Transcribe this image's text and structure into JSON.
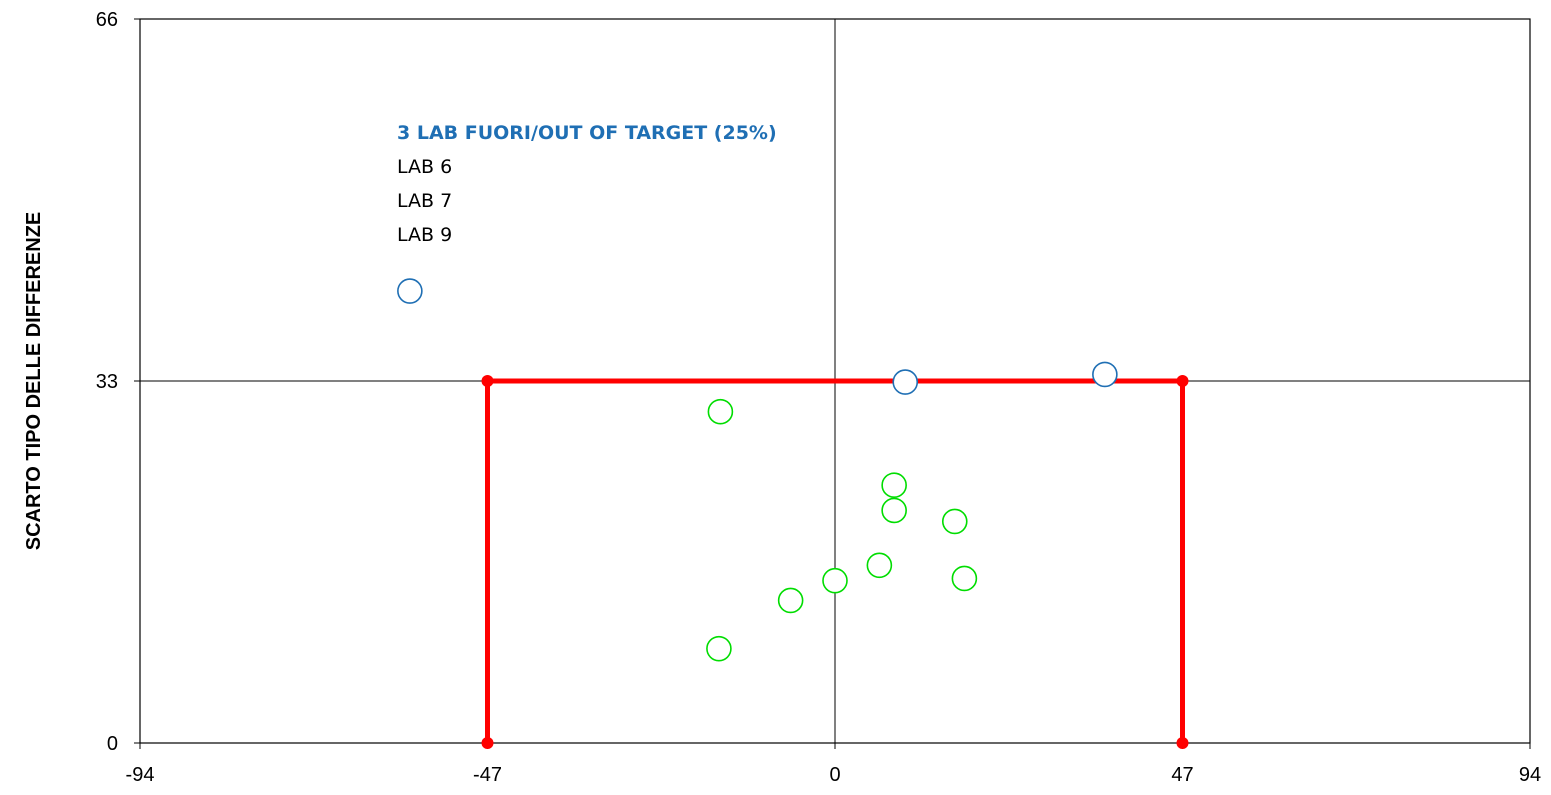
{
  "chart_data": {
    "type": "scatter",
    "title": "",
    "xlabel": "",
    "ylabel": "SCARTO TIPO DELLE DIFFERENZE",
    "xlim": [
      -94,
      94
    ],
    "ylim": [
      0,
      66
    ],
    "x_ticks": [
      "-94",
      "-47",
      "0",
      "47",
      "94"
    ],
    "y_ticks": [
      "0",
      "33",
      "66"
    ],
    "grid": false,
    "reference_lines": {
      "x": 0,
      "y": 33
    },
    "target_box": {
      "color": "#ff0000",
      "corners": [
        [
          -47,
          0
        ],
        [
          -47,
          33
        ],
        [
          47,
          33
        ],
        [
          47,
          0
        ]
      ]
    },
    "series": [
      {
        "status": "in",
        "color": "#00dd00",
        "points": [
          [
            -15.5,
            30.2
          ],
          [
            8,
            23.5
          ],
          [
            8,
            21.2
          ],
          [
            16.2,
            20.2
          ],
          [
            6,
            16.2
          ],
          [
            0,
            14.8
          ],
          [
            17.5,
            15.0
          ],
          [
            -6,
            13.0
          ],
          [
            -15.7,
            8.6
          ]
        ]
      },
      {
        "status": "out",
        "color": "#1f6fb4",
        "points": [
          [
            -57.5,
            41.2
          ],
          [
            9.5,
            32.9
          ],
          [
            36.5,
            33.6
          ]
        ]
      }
    ],
    "annotation": {
      "title": "3 LAB FUORI/OUT OF TARGET (25%)",
      "title_color": "#1f6fb4",
      "lines": [
        "LAB 6",
        "LAB 7",
        "LAB 9"
      ]
    }
  }
}
